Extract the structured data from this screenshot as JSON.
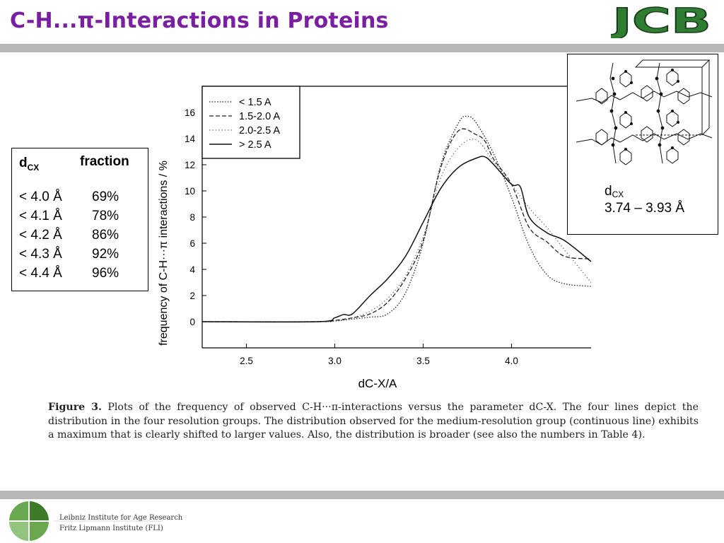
{
  "slide": {
    "title": "C-H...π-Interactions in Proteins",
    "logo_text": "JCB",
    "title_color": "#7b1fa2"
  },
  "fraction_table": {
    "header_d": "d",
    "header_d_sub": "CX",
    "header_fraction": "fraction",
    "rows": [
      {
        "threshold": "< 4.0 Å",
        "fraction": "69%"
      },
      {
        "threshold": "< 4.1 Å",
        "fraction": "78%"
      },
      {
        "threshold": "< 4.2 Å",
        "fraction": "86%"
      },
      {
        "threshold": "< 4.3 Å",
        "fraction": "92%"
      },
      {
        "threshold": "< 4.4 Å",
        "fraction": "96%"
      }
    ]
  },
  "structure_panel": {
    "dcx_label": "d",
    "dcx_sub": "CX",
    "dcx_range": "3.74 – 3.93 Å"
  },
  "caption": {
    "figure_label": "Figure 3.",
    "text": "Plots of the frequency of observed C-H···π-interactions versus the parameter dC-X. The four lines depict the distribution in the four resolution groups. The distribution observed for the medium-resolution group (continuous line) exhibits a maximum that is clearly shifted to larger values. Also, the distribution is broader (see also the numbers in Table 4)."
  },
  "footer": {
    "institute_line1": "Leibniz Institute for Age Research",
    "institute_line2": "Fritz Lipmann Institute (FLI)"
  },
  "chart_data": {
    "type": "line",
    "title": "",
    "xlabel": "dC-X/A",
    "ylabel": "frequency of C-H···π interactions / %",
    "xlim": [
      2.25,
      4.45
    ],
    "ylim": [
      -2,
      18
    ],
    "xticks": [
      2.5,
      3.0,
      3.5,
      4.0
    ],
    "xtick_labels": [
      "2.5",
      "3.0",
      "3.5",
      "4.0"
    ],
    "yticks": [
      0,
      2,
      4,
      6,
      8,
      10,
      12,
      14,
      16
    ],
    "ytick_labels": [
      "0",
      "2",
      "4",
      "6",
      "8",
      "10",
      "12",
      "14",
      "16"
    ],
    "grid": false,
    "legend_position": "top-left",
    "series": [
      {
        "name": "< 1.5 A",
        "style": "dotted",
        "x": [
          2.25,
          2.9,
          3.0,
          3.1,
          3.2,
          3.3,
          3.4,
          3.5,
          3.6,
          3.7,
          3.75,
          3.8,
          3.9,
          4.0,
          4.1,
          4.2,
          4.3,
          4.45
        ],
        "y": [
          0,
          0,
          0.05,
          0.2,
          0.35,
          0.6,
          2.2,
          6.0,
          12.0,
          15.2,
          15.7,
          15.2,
          12.8,
          9.5,
          5.8,
          3.6,
          2.9,
          2.7
        ]
      },
      {
        "name": "1.5-2.0 A",
        "style": "dashed",
        "x": [
          2.25,
          2.9,
          3.0,
          3.1,
          3.2,
          3.3,
          3.4,
          3.5,
          3.6,
          3.7,
          3.8,
          3.85,
          3.9,
          4.0,
          4.1,
          4.2,
          4.3,
          4.45
        ],
        "y": [
          0,
          0,
          0.1,
          0.3,
          0.6,
          1.5,
          3.3,
          6.2,
          11.8,
          14.6,
          14.3,
          13.8,
          12.4,
          10.5,
          7.2,
          6.1,
          5.0,
          4.8
        ]
      },
      {
        "name": "2.0-2.5 A",
        "style": "dotted-light",
        "x": [
          2.25,
          2.9,
          3.0,
          3.1,
          3.2,
          3.3,
          3.4,
          3.5,
          3.6,
          3.7,
          3.8,
          3.9,
          4.0,
          4.1,
          4.2,
          4.3,
          4.45
        ],
        "y": [
          0,
          0,
          0.05,
          0.3,
          0.8,
          1.8,
          3.5,
          6.5,
          11.0,
          13.3,
          13.9,
          12.2,
          10.5,
          8.7,
          7.2,
          5.5,
          3.0
        ]
      },
      {
        "name": "> 2.5 A",
        "style": "solid",
        "x": [
          2.25,
          2.9,
          3.0,
          3.05,
          3.1,
          3.2,
          3.3,
          3.4,
          3.5,
          3.6,
          3.7,
          3.8,
          3.85,
          3.9,
          4.0,
          4.05,
          4.1,
          4.2,
          4.3,
          4.45
        ],
        "y": [
          0,
          0,
          0.3,
          0.55,
          0.6,
          2.0,
          3.3,
          5.0,
          7.6,
          10.2,
          11.8,
          12.5,
          12.6,
          12.0,
          10.5,
          10.3,
          8.0,
          6.8,
          6.2,
          4.6
        ]
      }
    ]
  }
}
